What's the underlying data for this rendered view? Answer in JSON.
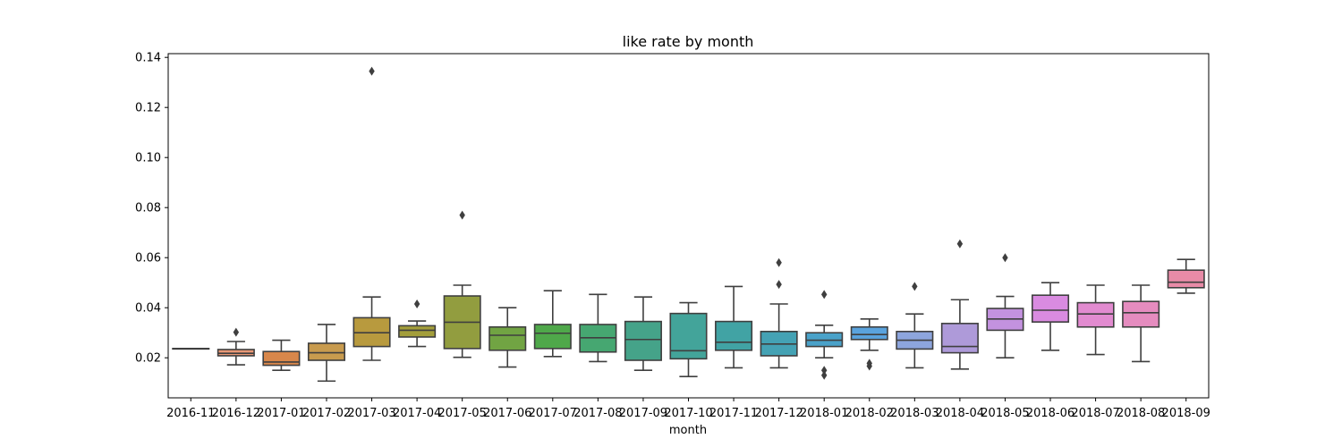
{
  "chart_data": {
    "type": "box",
    "title": "like rate by month",
    "xlabel": "month",
    "ylabel": "",
    "ylim": [
      0.004,
      0.1415
    ],
    "yticks": [
      0.02,
      0.04,
      0.06,
      0.08,
      0.1,
      0.12,
      0.14
    ],
    "ytick_labels": [
      "0.02",
      "0.04",
      "0.06",
      "0.08",
      "0.10",
      "0.12",
      "0.14"
    ],
    "categories": [
      "2016-11",
      "2016-12",
      "2017-01",
      "2017-02",
      "2017-03",
      "2017-04",
      "2017-05",
      "2017-06",
      "2017-07",
      "2017-08",
      "2017-09",
      "2017-10",
      "2017-11",
      "2017-12",
      "2018-01",
      "2018-02",
      "2018-03",
      "2018-04",
      "2018-05",
      "2018-06",
      "2018-07",
      "2018-08",
      "2018-09"
    ],
    "boxes": [
      {
        "whislo": 0.0237,
        "q1": 0.0237,
        "med": 0.0237,
        "q3": 0.0237,
        "whishi": 0.0237,
        "fliers": [],
        "color": "#e99690"
      },
      {
        "whislo": 0.0172,
        "q1": 0.0208,
        "med": 0.0218,
        "q3": 0.0233,
        "whishi": 0.0265,
        "fliers": [
          0.0302
        ],
        "color": "#e99876"
      },
      {
        "whislo": 0.015,
        "q1": 0.017,
        "med": 0.0183,
        "q3": 0.0225,
        "whishi": 0.027,
        "fliers": [],
        "color": "#d8874b"
      },
      {
        "whislo": 0.0107,
        "q1": 0.019,
        "med": 0.022,
        "q3": 0.0258,
        "whishi": 0.0333,
        "fliers": [],
        "color": "#c89b4e"
      },
      {
        "whislo": 0.019,
        "q1": 0.0245,
        "med": 0.03,
        "q3": 0.036,
        "whishi": 0.0443,
        "fliers": [
          0.1345
        ],
        "color": "#b89a3e"
      },
      {
        "whislo": 0.0245,
        "q1": 0.0283,
        "med": 0.031,
        "q3": 0.0328,
        "whishi": 0.0347,
        "fliers": [
          0.0415
        ],
        "color": "#a39e3b"
      },
      {
        "whislo": 0.0202,
        "q1": 0.0237,
        "med": 0.0342,
        "q3": 0.0447,
        "whishi": 0.049,
        "fliers": [
          0.077
        ],
        "color": "#929d3f"
      },
      {
        "whislo": 0.0163,
        "q1": 0.023,
        "med": 0.029,
        "q3": 0.0323,
        "whishi": 0.04,
        "fliers": [],
        "color": "#71a443"
      },
      {
        "whislo": 0.0205,
        "q1": 0.0237,
        "med": 0.0298,
        "q3": 0.0333,
        "whishi": 0.0468,
        "fliers": [],
        "color": "#4fa84a"
      },
      {
        "whislo": 0.0185,
        "q1": 0.0223,
        "med": 0.028,
        "q3": 0.0333,
        "whishi": 0.0453,
        "fliers": [],
        "color": "#46a771"
      },
      {
        "whislo": 0.015,
        "q1": 0.019,
        "med": 0.0273,
        "q3": 0.0345,
        "whishi": 0.0443,
        "fliers": [],
        "color": "#45a389"
      },
      {
        "whislo": 0.0125,
        "q1": 0.0196,
        "med": 0.0228,
        "q3": 0.0377,
        "whishi": 0.042,
        "fliers": [],
        "color": "#43a49a"
      },
      {
        "whislo": 0.016,
        "q1": 0.023,
        "med": 0.0262,
        "q3": 0.0345,
        "whishi": 0.0485,
        "fliers": [],
        "color": "#41a3a4"
      },
      {
        "whislo": 0.016,
        "q1": 0.0208,
        "med": 0.0255,
        "q3": 0.0305,
        "whishi": 0.0415,
        "fliers": [
          0.0493,
          0.058
        ],
        "color": "#44a2b4"
      },
      {
        "whislo": 0.02,
        "q1": 0.0245,
        "med": 0.027,
        "q3": 0.03,
        "whishi": 0.033,
        "fliers": [
          0.013,
          0.015,
          0.0453
        ],
        "color": "#4aa2c9"
      },
      {
        "whislo": 0.023,
        "q1": 0.0273,
        "med": 0.0293,
        "q3": 0.0323,
        "whishi": 0.0355,
        "fliers": [
          0.0167,
          0.0178
        ],
        "color": "#5aa3dd"
      },
      {
        "whislo": 0.016,
        "q1": 0.0235,
        "med": 0.027,
        "q3": 0.0305,
        "whishi": 0.0375,
        "fliers": [
          0.0485
        ],
        "color": "#8da5dd"
      },
      {
        "whislo": 0.0155,
        "q1": 0.022,
        "med": 0.0245,
        "q3": 0.0337,
        "whishi": 0.0432,
        "fliers": [
          0.0655
        ],
        "color": "#ae9ad9"
      },
      {
        "whislo": 0.02,
        "q1": 0.031,
        "med": 0.0355,
        "q3": 0.0397,
        "whishi": 0.0445,
        "fliers": [
          0.06
        ],
        "color": "#c392df"
      },
      {
        "whislo": 0.023,
        "q1": 0.0343,
        "med": 0.039,
        "q3": 0.045,
        "whishi": 0.05,
        "fliers": [],
        "color": "#d98be0"
      },
      {
        "whislo": 0.0213,
        "q1": 0.0323,
        "med": 0.0375,
        "q3": 0.042,
        "whishi": 0.049,
        "fliers": [],
        "color": "#e28bd0"
      },
      {
        "whislo": 0.0185,
        "q1": 0.0323,
        "med": 0.038,
        "q3": 0.0425,
        "whishi": 0.049,
        "fliers": [],
        "color": "#e58cbf"
      },
      {
        "whislo": 0.0458,
        "q1": 0.048,
        "med": 0.0502,
        "q3": 0.055,
        "whishi": 0.0593,
        "fliers": [],
        "color": "#e88ba7"
      }
    ]
  }
}
